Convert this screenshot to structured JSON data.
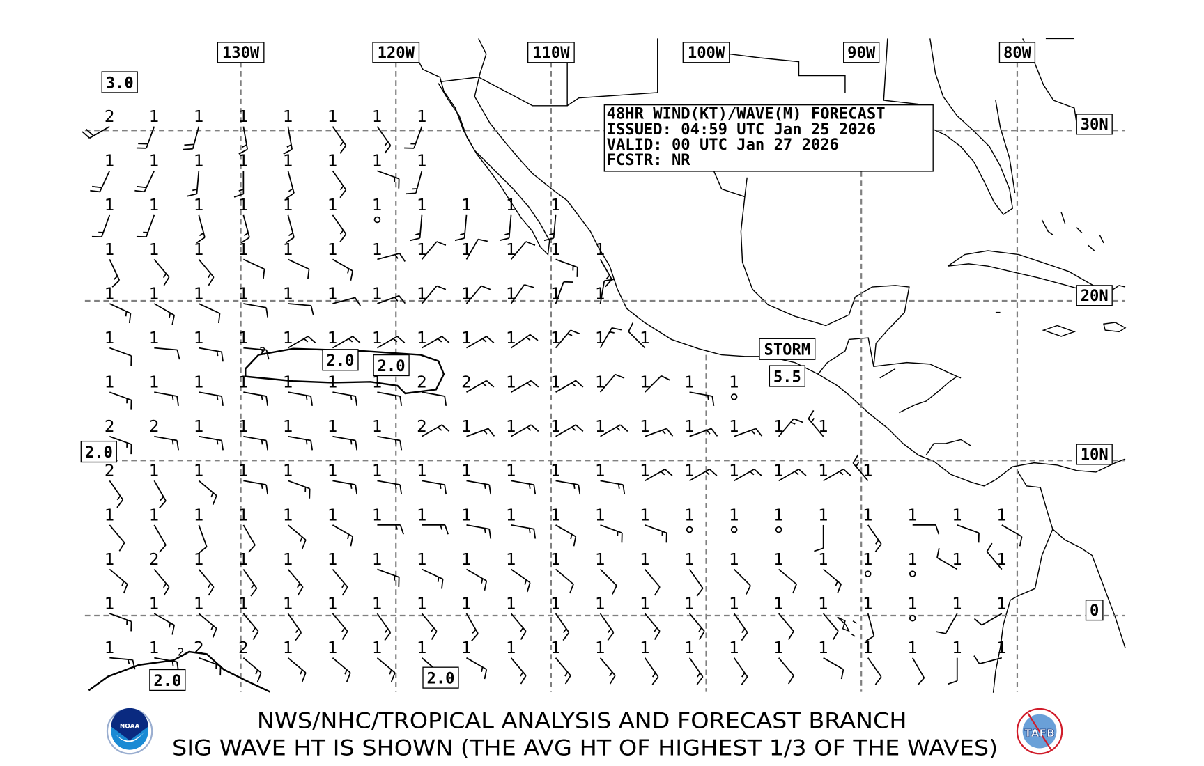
{
  "title_box": {
    "line1": "48HR WIND(KT)/WAVE(M) FORECAST",
    "line2": "ISSUED: 04:59 UTC Jan 25 2026",
    "line3": "VALID: 00 UTC Jan 27 2026",
    "line4": "FCSTR: NR"
  },
  "longitude_labels": [
    "130W",
    "120W",
    "110W",
    "100W",
    "90W",
    "80W"
  ],
  "latitude_labels": [
    "30N",
    "20N",
    "10N",
    "0"
  ],
  "contour_labels": {
    "a": "3.0",
    "b": "2.0",
    "c": "2.0",
    "d": "2.0",
    "e": "2.0",
    "f": "2.0",
    "storm": "STORM",
    "storm_wave": "5.5",
    "zero": "0"
  },
  "footer": {
    "line1": "NWS/NHC/TROPICAL ANALYSIS AND FORECAST BRANCH",
    "line2": "SIG WAVE HT IS SHOWN (THE AVG HT OF HIGHEST 1/3 OF THE WAVES)",
    "logo_left": "NOAA",
    "logo_right": "TAFB"
  },
  "colors": {
    "grid": "#808080",
    "ink": "#000000",
    "noaa_blue": "#1a6fc4",
    "tafb_red": "#d01c2a"
  },
  "grid_points": {
    "wave_m": [
      [
        "2",
        "1",
        "1",
        "1",
        "1",
        "1",
        "1",
        "1"
      ],
      [
        "1",
        "1",
        "1",
        "1",
        "1",
        "1",
        "1",
        "1"
      ],
      [
        "1",
        "1",
        "1",
        "1",
        "1",
        "1",
        "1",
        "1",
        "1",
        "1",
        "1"
      ],
      [
        "1",
        "1",
        "1",
        "1",
        "1",
        "1",
        "1",
        "1",
        "1",
        "1",
        "1",
        "1"
      ],
      [
        "1",
        "1",
        "1",
        "1",
        "1",
        "1",
        "1",
        "1",
        "1",
        "1",
        "1",
        "1"
      ],
      [
        "1",
        "1",
        "1",
        "1",
        "1",
        "1",
        "1",
        "1",
        "1",
        "1",
        "1",
        "1",
        "1"
      ],
      [
        "1",
        "1",
        "1",
        "1",
        "1",
        "1",
        "1",
        "2",
        "2",
        "1",
        "1",
        "1",
        "1",
        "1",
        "1"
      ],
      [
        "2",
        "2",
        "1",
        "1",
        "1",
        "1",
        "1",
        "2",
        "1",
        "1",
        "1",
        "1",
        "1",
        "1",
        "1",
        "1",
        "1"
      ],
      [
        "2",
        "1",
        "1",
        "1",
        "1",
        "1",
        "1",
        "1",
        "1",
        "1",
        "1",
        "1",
        "1",
        "1",
        "1",
        "1",
        "1",
        "1"
      ],
      [
        "1",
        "1",
        "1",
        "1",
        "1",
        "1",
        "1",
        "1",
        "1",
        "1",
        "1",
        "1",
        "1",
        "1",
        "1",
        "1",
        "1",
        "1",
        "1",
        "1",
        "1"
      ],
      [
        "1",
        "2",
        "1",
        "1",
        "1",
        "1",
        "1",
        "1",
        "1",
        "1",
        "1",
        "1",
        "1",
        "1",
        "1",
        "1",
        "1",
        "1",
        "1",
        "1",
        "1"
      ],
      [
        "1",
        "1",
        "1",
        "1",
        "1",
        "1",
        "1",
        "1",
        "1",
        "1",
        "1",
        "1",
        "1",
        "1",
        "1",
        "1",
        "1",
        "1",
        "1",
        "1",
        "1"
      ],
      [
        "1",
        "1",
        "2",
        "2",
        "1",
        "1",
        "1",
        "1",
        "1",
        "1",
        "1",
        "1",
        "1",
        "1",
        "1",
        "1",
        "1",
        "1",
        "1",
        "1",
        "1"
      ]
    ],
    "wind_dir_deg": [
      [
        240,
        200,
        195,
        170,
        170,
        145,
        145,
        200
      ],
      [
        205,
        205,
        185,
        180,
        165,
        145,
        110,
        195
      ],
      [
        200,
        200,
        165,
        165,
        165,
        145,
        "calm",
        185,
        185,
        185,
        185
      ],
      [
        155,
        140,
        140,
        115,
        115,
        120,
        75,
        40,
        30,
        40,
        110,
        150
      ],
      [
        115,
        120,
        115,
        100,
        95,
        75,
        70,
        40,
        40,
        35,
        20,
        10
      ],
      [
        110,
        95,
        100,
        95,
        60,
        60,
        60,
        60,
        60,
        55,
        40,
        30,
        315
      ],
      [
        110,
        100,
        100,
        100,
        100,
        100,
        100,
        100,
        60,
        60,
        60,
        40,
        45,
        100,
        "calm"
      ],
      [
        110,
        100,
        100,
        100,
        100,
        100,
        100,
        60,
        70,
        60,
        60,
        60,
        70,
        70,
        70,
        40,
        320
      ],
      [
        145,
        150,
        130,
        100,
        110,
        100,
        100,
        100,
        100,
        100,
        100,
        100,
        60,
        60,
        60,
        60,
        60,
        320
      ],
      [
        140,
        150,
        160,
        150,
        130,
        120,
        90,
        90,
        100,
        100,
        120,
        110,
        110,
        "calm",
        "calm",
        "calm",
        180,
        145,
        90,
        110,
        120
      ],
      [
        130,
        140,
        140,
        145,
        140,
        140,
        110,
        115,
        120,
        125,
        130,
        135,
        140,
        145,
        135,
        130,
        130,
        "calm",
        "calm",
        300,
        320
      ],
      [
        110,
        120,
        130,
        140,
        145,
        140,
        145,
        140,
        150,
        140,
        145,
        145,
        140,
        140,
        145,
        140,
        140,
        165,
        "calm",
        210,
        240
      ],
      [
        95,
        100,
        110,
        130,
        130,
        130,
        130,
        130,
        120,
        140,
        140,
        140,
        145,
        145,
        145,
        140,
        120,
        145,
        150,
        180,
        255
      ]
    ],
    "wind_kt": [
      [
        20,
        20,
        20,
        15,
        15,
        15,
        15,
        15
      ],
      [
        20,
        20,
        15,
        15,
        15,
        15,
        15,
        15
      ],
      [
        15,
        15,
        15,
        15,
        15,
        15,
        0,
        15,
        15,
        15,
        15
      ],
      [
        15,
        15,
        15,
        10,
        10,
        15,
        15,
        10,
        10,
        10,
        15,
        15
      ],
      [
        15,
        15,
        10,
        10,
        10,
        10,
        15,
        10,
        10,
        10,
        10,
        10
      ],
      [
        10,
        10,
        15,
        15,
        15,
        15,
        15,
        15,
        15,
        15,
        15,
        15,
        10
      ],
      [
        15,
        15,
        15,
        15,
        15,
        15,
        15,
        10,
        15,
        15,
        15,
        10,
        10,
        15,
        0
      ],
      [
        15,
        15,
        15,
        15,
        15,
        15,
        15,
        15,
        15,
        15,
        15,
        15,
        15,
        15,
        15,
        15,
        15
      ],
      [
        15,
        15,
        15,
        15,
        15,
        15,
        15,
        15,
        15,
        15,
        15,
        15,
        15,
        15,
        15,
        15,
        15,
        15
      ],
      [
        10,
        10,
        10,
        10,
        15,
        15,
        15,
        15,
        15,
        15,
        15,
        15,
        15,
        0,
        0,
        0,
        10,
        15,
        10,
        10,
        10
      ],
      [
        15,
        15,
        15,
        15,
        15,
        15,
        15,
        15,
        15,
        15,
        10,
        10,
        10,
        10,
        10,
        10,
        15,
        0,
        0,
        10,
        10
      ],
      [
        15,
        15,
        15,
        15,
        15,
        15,
        15,
        15,
        15,
        15,
        15,
        15,
        15,
        15,
        15,
        10,
        10,
        10,
        0,
        10,
        10
      ],
      [
        15,
        15,
        15,
        15,
        15,
        15,
        15,
        15,
        15,
        15,
        15,
        15,
        15,
        15,
        15,
        10,
        10,
        10,
        10,
        10,
        10
      ]
    ]
  }
}
